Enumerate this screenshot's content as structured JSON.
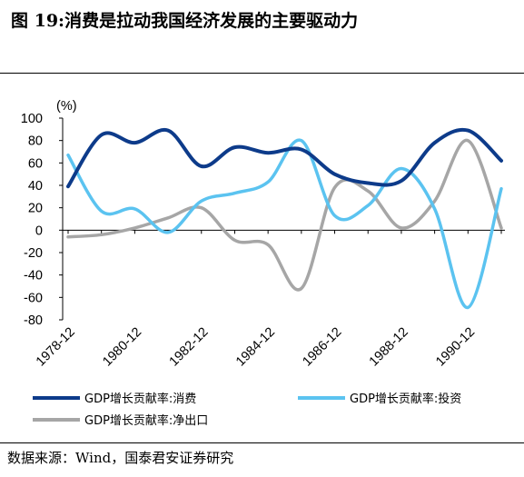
{
  "title": "图 19:消费是拉动我国经济发展的主要驱动力",
  "source": "数据来源：Wind，国泰君安证券研究",
  "colors": {
    "consumption": "#0d3b8a",
    "investment": "#5bc3f0",
    "net_exports": "#a6a6a6"
  },
  "chart_data": {
    "type": "line",
    "title": "",
    "xlabel": "",
    "ylabel": "(%)",
    "ylim": [
      -80,
      100
    ],
    "yticks": [
      100,
      80,
      60,
      40,
      20,
      0,
      -20,
      -40,
      -60,
      -80
    ],
    "x_tick_labels": [
      "1978-12",
      "1980-12",
      "1982-12",
      "1984-12",
      "1986-12",
      "1988-12",
      "1990-12"
    ],
    "x": [
      "1978-12",
      "1979-12",
      "1980-12",
      "1981-12",
      "1982-12",
      "1983-12",
      "1984-12",
      "1985-12",
      "1986-12",
      "1987-12",
      "1988-12",
      "1989-12",
      "1990-12",
      "1991-12"
    ],
    "grid": false,
    "legend": "bottom",
    "series": [
      {
        "name": "GDP增长贡献率:消费",
        "values": [
          39,
          85,
          78,
          89,
          57,
          74,
          69,
          72,
          50,
          42,
          44,
          78,
          89,
          62
        ]
      },
      {
        "name": "GDP增长贡献率:投资",
        "values": [
          67,
          17,
          19,
          -2,
          26,
          33,
          43,
          80,
          13,
          22,
          55,
          19,
          -69,
          37
        ]
      },
      {
        "name": "GDP增长贡献率:净出口",
        "values": [
          -6,
          -4,
          2,
          11,
          20,
          -9,
          -13,
          -52,
          38,
          35,
          2,
          26,
          80,
          2
        ]
      }
    ]
  }
}
